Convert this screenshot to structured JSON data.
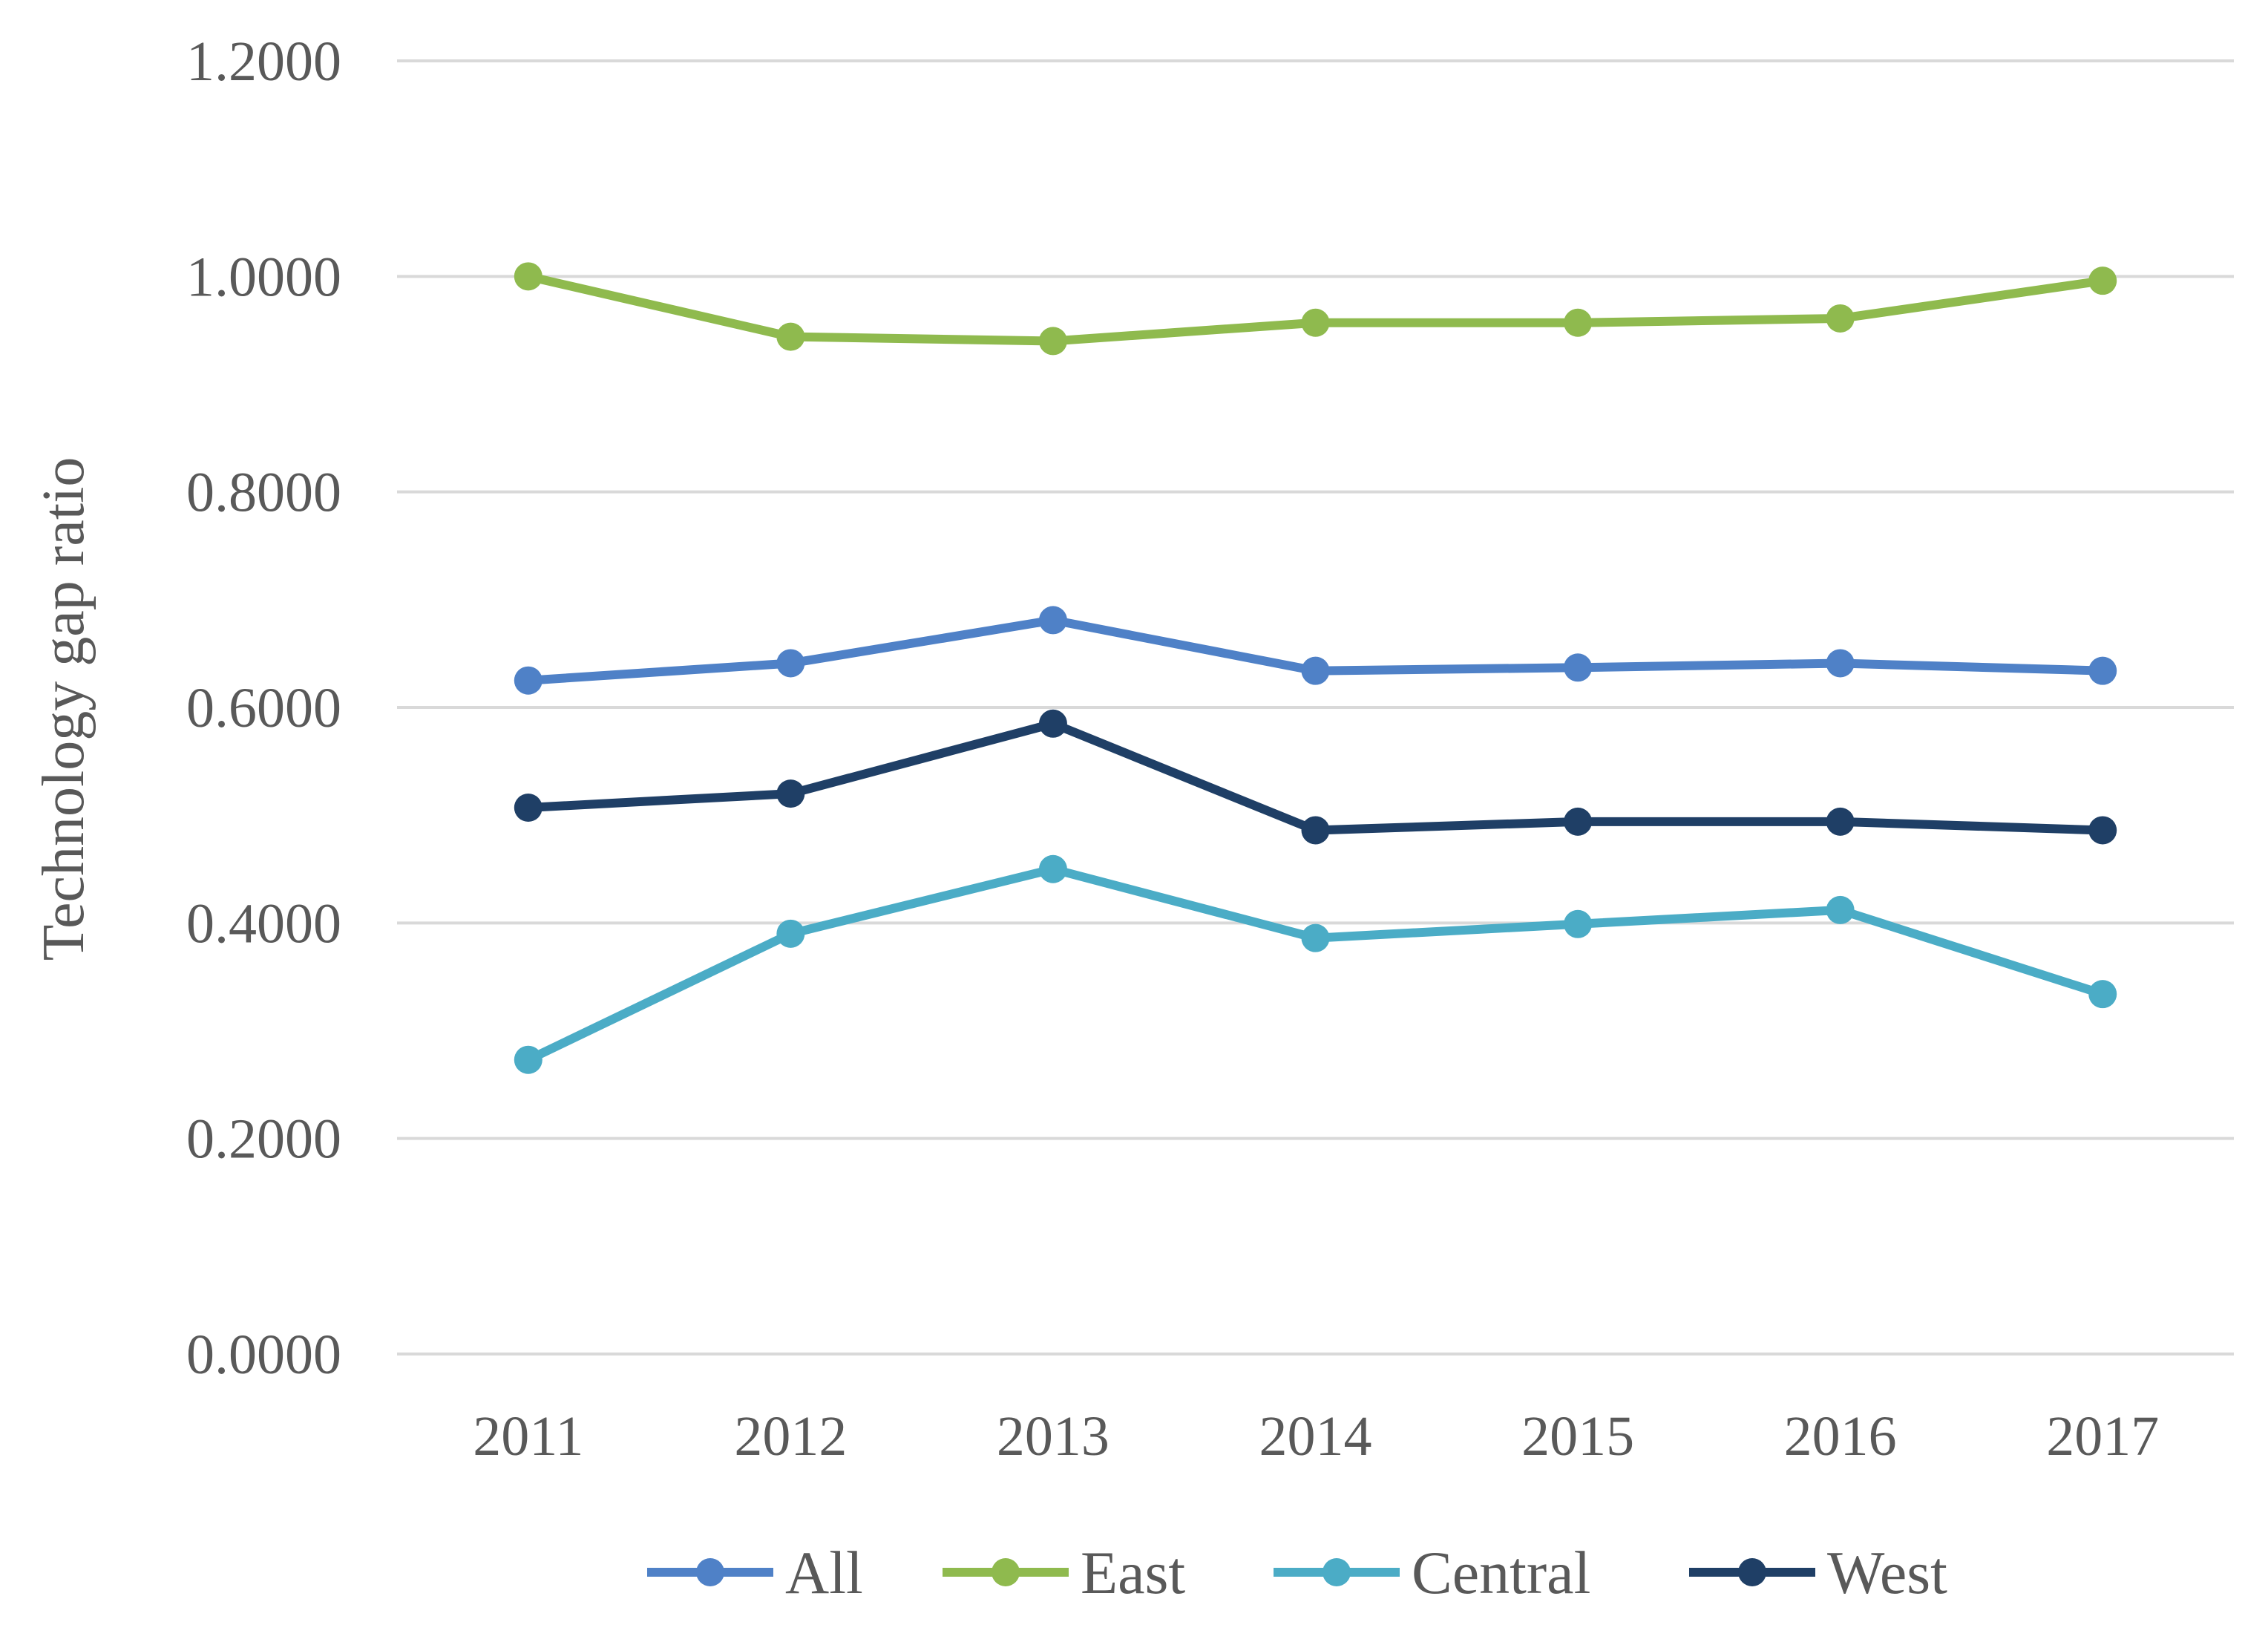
{
  "chart_data": {
    "type": "line",
    "title": "",
    "xlabel": "",
    "ylabel": "Technology  gap  ratio",
    "ylim": [
      0,
      1.2
    ],
    "yticks": [
      "0.0000",
      "0.2000",
      "0.4000",
      "0.6000",
      "0.8000",
      "1.0000",
      "1.2000"
    ],
    "ytick_values": [
      0,
      0.2,
      0.4,
      0.6,
      0.8,
      1.0,
      1.2
    ],
    "grid": true,
    "legend_position": "bottom",
    "categories": [
      "2011",
      "2012",
      "2013",
      "2014",
      "2015",
      "2016",
      "2017"
    ],
    "series": [
      {
        "name": "All",
        "color": "#4f81c7",
        "values": [
          0.625,
          0.641,
          0.681,
          0.634,
          0.637,
          0.641,
          0.634
        ]
      },
      {
        "name": "East",
        "color": "#8fba4e",
        "values": [
          1.0,
          0.944,
          0.94,
          0.957,
          0.957,
          0.961,
          0.996
        ]
      },
      {
        "name": "Central",
        "color": "#4bacc6",
        "values": [
          0.273,
          0.39,
          0.45,
          0.386,
          0.399,
          0.412,
          0.334
        ]
      },
      {
        "name": "West",
        "color": "#1f3f66",
        "values": [
          0.507,
          0.52,
          0.585,
          0.486,
          0.494,
          0.494,
          0.486
        ]
      }
    ]
  }
}
